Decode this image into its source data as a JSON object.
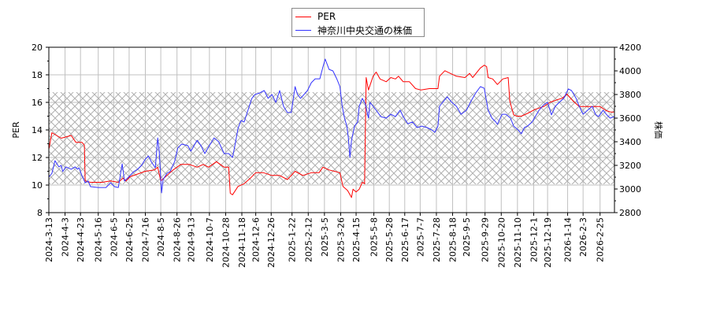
{
  "chart_data": {
    "type": "line",
    "start_date": "2024-03-13",
    "x_unit": "days since start_date",
    "legend": {
      "placement": "top-center",
      "entries": [
        "PER",
        "神奈川中央交通の株価"
      ]
    },
    "left_axis": {
      "label": "PER",
      "ylim": [
        8,
        20
      ],
      "ticks": [
        "8",
        "10",
        "12",
        "14",
        "16",
        "18",
        "20"
      ]
    },
    "right_axis": {
      "label": "株価",
      "ylim": [
        2800,
        4200
      ],
      "ticks": [
        "2800",
        "3000",
        "3200",
        "3400",
        "3600",
        "3800",
        "4000",
        "4200"
      ]
    },
    "x_ticks": [
      "2024-3-13",
      "2024-4-3",
      "2024-4-23",
      "2024-5-16",
      "2024-6-5",
      "2024-6-25",
      "2024-7-16",
      "2024-8-5",
      "2024-8-26",
      "2024-9-13",
      "2024-10-7",
      "2024-10-28",
      "2024-11-18",
      "2024-12-6",
      "2024-12-26",
      "2025-1-22",
      "2025-2-12",
      "2025-3-5",
      "2025-3-26",
      "2025-4-15",
      "2025-5-8",
      "2025-5-28",
      "2025-6-17",
      "2025-7-7",
      "2025-7-28",
      "2025-8-18",
      "2025-9-5",
      "2025-9-29",
      "2025-10-20",
      "2025-11-10",
      "2025-12-1",
      "2025-12-19",
      "2026-1-14",
      "2026-2-3",
      "2026-2-25"
    ],
    "grid": true,
    "band_per": [
      10.06,
      16.74
    ],
    "colors": {
      "per": "#ff0000",
      "price": "#3333ff",
      "grid": "#c0c0c0",
      "band": "#b0b0b0"
    },
    "series": [
      {
        "name": "PER",
        "axis": "left",
        "points": [
          [
            0,
            12.6
          ],
          [
            4,
            13.8
          ],
          [
            10,
            13.6
          ],
          [
            16,
            13.4
          ],
          [
            29,
            13.6
          ],
          [
            35,
            13.1
          ],
          [
            43,
            13.1
          ],
          [
            46,
            12.9
          ],
          [
            47,
            10.3
          ],
          [
            54,
            10.2
          ],
          [
            69,
            10.2
          ],
          [
            80,
            10.3
          ],
          [
            90,
            10.2
          ],
          [
            96,
            10.5
          ],
          [
            100,
            10.3
          ],
          [
            105,
            10.6
          ],
          [
            115,
            10.8
          ],
          [
            125,
            11.0
          ],
          [
            137,
            11.1
          ],
          [
            141,
            11.3
          ],
          [
            145,
            10.3
          ],
          [
            151,
            10.6
          ],
          [
            161,
            11.1
          ],
          [
            171,
            11.5
          ],
          [
            182,
            11.5
          ],
          [
            192,
            11.3
          ],
          [
            200,
            11.5
          ],
          [
            207,
            11.3
          ],
          [
            217,
            11.7
          ],
          [
            227,
            11.3
          ],
          [
            233,
            11.3
          ],
          [
            235,
            9.4
          ],
          [
            238,
            9.3
          ],
          [
            245,
            9.9
          ],
          [
            253,
            10.1
          ],
          [
            261,
            10.5
          ],
          [
            268,
            10.9
          ],
          [
            278,
            10.9
          ],
          [
            289,
            10.7
          ],
          [
            299,
            10.7
          ],
          [
            309,
            10.4
          ],
          [
            319,
            11.0
          ],
          [
            329,
            10.7
          ],
          [
            340,
            10.9
          ],
          [
            350,
            10.9
          ],
          [
            355,
            11.3
          ],
          [
            363,
            11.1
          ],
          [
            370,
            11.0
          ],
          [
            377,
            10.9
          ],
          [
            381,
            9.9
          ],
          [
            387,
            9.6
          ],
          [
            392,
            9.1
          ],
          [
            394,
            9.7
          ],
          [
            398,
            9.5
          ],
          [
            402,
            9.7
          ],
          [
            406,
            10.2
          ],
          [
            409,
            10.1
          ],
          [
            411,
            17.8
          ],
          [
            414,
            16.9
          ],
          [
            420,
            17.9
          ],
          [
            424,
            18.2
          ],
          [
            429,
            17.7
          ],
          [
            437,
            17.5
          ],
          [
            443,
            17.8
          ],
          [
            449,
            17.7
          ],
          [
            453,
            17.9
          ],
          [
            459,
            17.5
          ],
          [
            467,
            17.5
          ],
          [
            475,
            17.0
          ],
          [
            482,
            16.9
          ],
          [
            493,
            17.0
          ],
          [
            504,
            17.0
          ],
          [
            506,
            17.9
          ],
          [
            513,
            18.3
          ],
          [
            520,
            18.1
          ],
          [
            528,
            17.9
          ],
          [
            539,
            17.8
          ],
          [
            545,
            18.1
          ],
          [
            549,
            17.8
          ],
          [
            559,
            18.5
          ],
          [
            564,
            18.7
          ],
          [
            567,
            18.6
          ],
          [
            569,
            17.8
          ],
          [
            575,
            17.7
          ],
          [
            581,
            17.3
          ],
          [
            588,
            17.7
          ],
          [
            595,
            17.8
          ],
          [
            597,
            16.1
          ],
          [
            602,
            15.1
          ],
          [
            606,
            15.0
          ],
          [
            612,
            15.0
          ],
          [
            620,
            15.2
          ],
          [
            630,
            15.5
          ],
          [
            641,
            15.7
          ],
          [
            649,
            16.0
          ],
          [
            659,
            16.2
          ],
          [
            665,
            16.3
          ],
          [
            671,
            16.6
          ],
          [
            679,
            16.1
          ],
          [
            687,
            15.7
          ],
          [
            697,
            15.7
          ],
          [
            707,
            15.7
          ],
          [
            714,
            15.7
          ],
          [
            722,
            15.4
          ],
          [
            728,
            15.3
          ],
          [
            732,
            15.3
          ]
        ]
      },
      {
        "name": "神奈川中央交通の株価",
        "axis": "right",
        "points": [
          [
            0,
            3100
          ],
          [
            4,
            3133
          ],
          [
            8,
            3240
          ],
          [
            13,
            3187
          ],
          [
            16,
            3200
          ],
          [
            18,
            3147
          ],
          [
            22,
            3187
          ],
          [
            29,
            3167
          ],
          [
            34,
            3187
          ],
          [
            37,
            3167
          ],
          [
            39,
            3180
          ],
          [
            43,
            3113
          ],
          [
            47,
            3053
          ],
          [
            51,
            3067
          ],
          [
            54,
            3020
          ],
          [
            64,
            3013
          ],
          [
            74,
            3013
          ],
          [
            80,
            3053
          ],
          [
            85,
            3020
          ],
          [
            90,
            3013
          ],
          [
            95,
            3213
          ],
          [
            98,
            3067
          ],
          [
            102,
            3093
          ],
          [
            110,
            3147
          ],
          [
            115,
            3167
          ],
          [
            120,
            3200
          ],
          [
            125,
            3253
          ],
          [
            129,
            3280
          ],
          [
            133,
            3227
          ],
          [
            138,
            3180
          ],
          [
            141,
            3433
          ],
          [
            143,
            3320
          ],
          [
            146,
            2967
          ],
          [
            148,
            3080
          ],
          [
            153,
            3133
          ],
          [
            157,
            3147
          ],
          [
            163,
            3233
          ],
          [
            167,
            3347
          ],
          [
            172,
            3380
          ],
          [
            180,
            3367
          ],
          [
            184,
            3320
          ],
          [
            192,
            3413
          ],
          [
            197,
            3367
          ],
          [
            202,
            3300
          ],
          [
            208,
            3367
          ],
          [
            214,
            3433
          ],
          [
            220,
            3400
          ],
          [
            227,
            3300
          ],
          [
            233,
            3300
          ],
          [
            238,
            3267
          ],
          [
            241,
            3367
          ],
          [
            245,
            3513
          ],
          [
            249,
            3580
          ],
          [
            253,
            3567
          ],
          [
            258,
            3667
          ],
          [
            263,
            3767
          ],
          [
            267,
            3800
          ],
          [
            273,
            3813
          ],
          [
            279,
            3833
          ],
          [
            284,
            3767
          ],
          [
            289,
            3800
          ],
          [
            294,
            3733
          ],
          [
            299,
            3833
          ],
          [
            304,
            3700
          ],
          [
            309,
            3647
          ],
          [
            314,
            3647
          ],
          [
            319,
            3867
          ],
          [
            322,
            3800
          ],
          [
            326,
            3767
          ],
          [
            335,
            3833
          ],
          [
            340,
            3900
          ],
          [
            345,
            3933
          ],
          [
            351,
            3933
          ],
          [
            355,
            4033
          ],
          [
            358,
            4100
          ],
          [
            363,
            4013
          ],
          [
            368,
            4000
          ],
          [
            373,
            3933
          ],
          [
            377,
            3867
          ],
          [
            380,
            3700
          ],
          [
            383,
            3600
          ],
          [
            386,
            3533
          ],
          [
            388,
            3433
          ],
          [
            390,
            3267
          ],
          [
            392,
            3413
          ],
          [
            396,
            3533
          ],
          [
            400,
            3567
          ],
          [
            402,
            3700
          ],
          [
            406,
            3767
          ],
          [
            410,
            3720
          ],
          [
            414,
            3600
          ],
          [
            416,
            3733
          ],
          [
            420,
            3700
          ],
          [
            424,
            3667
          ],
          [
            430,
            3613
          ],
          [
            437,
            3600
          ],
          [
            443,
            3633
          ],
          [
            449,
            3613
          ],
          [
            455,
            3667
          ],
          [
            459,
            3613
          ],
          [
            465,
            3553
          ],
          [
            471,
            3567
          ],
          [
            477,
            3520
          ],
          [
            483,
            3533
          ],
          [
            490,
            3520
          ],
          [
            496,
            3500
          ],
          [
            500,
            3480
          ],
          [
            504,
            3533
          ],
          [
            506,
            3700
          ],
          [
            510,
            3733
          ],
          [
            516,
            3780
          ],
          [
            522,
            3733
          ],
          [
            528,
            3700
          ],
          [
            534,
            3633
          ],
          [
            541,
            3667
          ],
          [
            547,
            3747
          ],
          [
            553,
            3813
          ],
          [
            559,
            3867
          ],
          [
            564,
            3853
          ],
          [
            569,
            3667
          ],
          [
            574,
            3600
          ],
          [
            579,
            3567
          ],
          [
            581,
            3547
          ],
          [
            587,
            3633
          ],
          [
            592,
            3633
          ],
          [
            598,
            3600
          ],
          [
            602,
            3533
          ],
          [
            608,
            3500
          ],
          [
            612,
            3467
          ],
          [
            616,
            3520
          ],
          [
            620,
            3533
          ],
          [
            626,
            3567
          ],
          [
            630,
            3613
          ],
          [
            635,
            3667
          ],
          [
            641,
            3713
          ],
          [
            646,
            3733
          ],
          [
            651,
            3627
          ],
          [
            656,
            3700
          ],
          [
            661,
            3733
          ],
          [
            667,
            3767
          ],
          [
            673,
            3847
          ],
          [
            677,
            3833
          ],
          [
            683,
            3767
          ],
          [
            687,
            3700
          ],
          [
            692,
            3633
          ],
          [
            698,
            3667
          ],
          [
            704,
            3700
          ],
          [
            708,
            3633
          ],
          [
            712,
            3613
          ],
          [
            718,
            3667
          ],
          [
            722,
            3633
          ],
          [
            727,
            3600
          ],
          [
            732,
            3613
          ]
        ]
      }
    ]
  }
}
